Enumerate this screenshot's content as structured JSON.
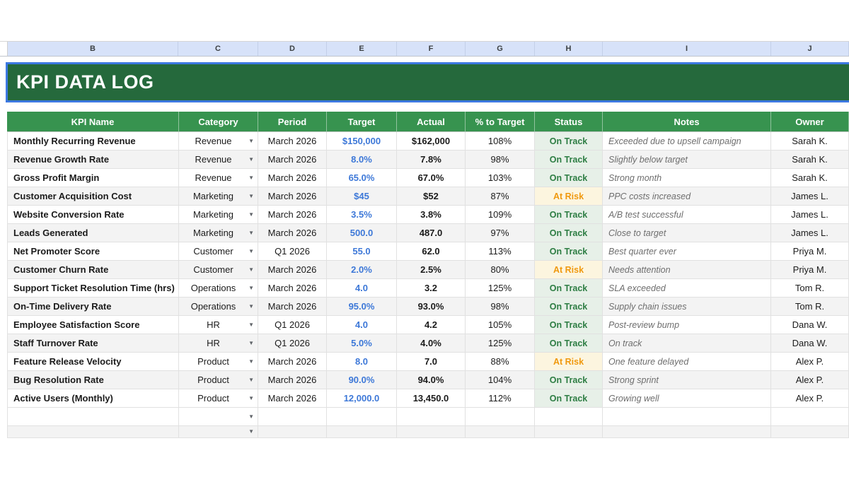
{
  "sheet": {
    "column_letters": [
      "B",
      "C",
      "D",
      "E",
      "F",
      "G",
      "H",
      "I",
      "J"
    ],
    "banner_title": "KPI DATA LOG",
    "colors": {
      "banner_green": "#25693c",
      "header_green": "#37934f",
      "strip_blue": "#d7e2f9",
      "selection_blue": "#3c78e0",
      "target_blue": "#3d78d8",
      "on_track_text": "#2d7d43",
      "on_track_bg": "#e7f0e8",
      "at_risk_text": "#f0990f",
      "at_risk_bg": "#fcf5df"
    },
    "table": {
      "headers": [
        "KPI Name",
        "Category",
        "Period",
        "Target",
        "Actual",
        "% to Target",
        "Status",
        "Notes",
        "Owner"
      ],
      "rows": [
        {
          "kpi": "Monthly Recurring Revenue",
          "category": "Revenue",
          "period": "March 2026",
          "target": "$150,000",
          "actual": "$162,000",
          "pct_to_target": "108%",
          "status": "On Track",
          "notes": "Exceeded due to upsell campaign",
          "owner": "Sarah K."
        },
        {
          "kpi": "Revenue Growth Rate",
          "category": "Revenue",
          "period": "March 2026",
          "target": "8.0%",
          "actual": "7.8%",
          "pct_to_target": "98%",
          "status": "On Track",
          "notes": "Slightly below target",
          "owner": "Sarah K."
        },
        {
          "kpi": "Gross Profit Margin",
          "category": "Revenue",
          "period": "March 2026",
          "target": "65.0%",
          "actual": "67.0%",
          "pct_to_target": "103%",
          "status": "On Track",
          "notes": "Strong month",
          "owner": "Sarah K."
        },
        {
          "kpi": "Customer Acquisition Cost",
          "category": "Marketing",
          "period": "March 2026",
          "target": "$45",
          "actual": "$52",
          "pct_to_target": "87%",
          "status": "At Risk",
          "notes": "PPC costs increased",
          "owner": "James L."
        },
        {
          "kpi": "Website Conversion Rate",
          "category": "Marketing",
          "period": "March 2026",
          "target": "3.5%",
          "actual": "3.8%",
          "pct_to_target": "109%",
          "status": "On Track",
          "notes": "A/B test successful",
          "owner": "James L."
        },
        {
          "kpi": "Leads Generated",
          "category": "Marketing",
          "period": "March 2026",
          "target": "500.0",
          "actual": "487.0",
          "pct_to_target": "97%",
          "status": "On Track",
          "notes": "Close to target",
          "owner": "James L."
        },
        {
          "kpi": "Net Promoter Score",
          "category": "Customer",
          "period": "Q1 2026",
          "target": "55.0",
          "actual": "62.0",
          "pct_to_target": "113%",
          "status": "On Track",
          "notes": "Best quarter ever",
          "owner": "Priya M."
        },
        {
          "kpi": "Customer Churn Rate",
          "category": "Customer",
          "period": "March 2026",
          "target": "2.0%",
          "actual": "2.5%",
          "pct_to_target": "80%",
          "status": "At Risk",
          "notes": "Needs attention",
          "owner": "Priya M."
        },
        {
          "kpi": "Support Ticket Resolution Time (hrs)",
          "category": "Operations",
          "period": "March 2026",
          "target": "4.0",
          "actual": "3.2",
          "pct_to_target": "125%",
          "status": "On Track",
          "notes": "SLA exceeded",
          "owner": "Tom R."
        },
        {
          "kpi": "On-Time Delivery Rate",
          "category": "Operations",
          "period": "March 2026",
          "target": "95.0%",
          "actual": "93.0%",
          "pct_to_target": "98%",
          "status": "On Track",
          "notes": "Supply chain issues",
          "owner": "Tom R."
        },
        {
          "kpi": "Employee Satisfaction Score",
          "category": "HR",
          "period": "Q1 2026",
          "target": "4.0",
          "actual": "4.2",
          "pct_to_target": "105%",
          "status": "On Track",
          "notes": "Post-review bump",
          "owner": "Dana W."
        },
        {
          "kpi": "Staff Turnover Rate",
          "category": "HR",
          "period": "Q1 2026",
          "target": "5.0%",
          "actual": "4.0%",
          "pct_to_target": "125%",
          "status": "On Track",
          "notes": "On track",
          "owner": "Dana W."
        },
        {
          "kpi": "Feature Release Velocity",
          "category": "Product",
          "period": "March 2026",
          "target": "8.0",
          "actual": "7.0",
          "pct_to_target": "88%",
          "status": "At Risk",
          "notes": "One feature delayed",
          "owner": "Alex P."
        },
        {
          "kpi": "Bug Resolution Rate",
          "category": "Product",
          "period": "March 2026",
          "target": "90.0%",
          "actual": "94.0%",
          "pct_to_target": "104%",
          "status": "On Track",
          "notes": "Strong sprint",
          "owner": "Alex P."
        },
        {
          "kpi": "Active Users (Monthly)",
          "category": "Product",
          "period": "March 2026",
          "target": "12,000.0",
          "actual": "13,450.0",
          "pct_to_target": "112%",
          "status": "On Track",
          "notes": "Growing well",
          "owner": "Alex P."
        }
      ],
      "empty_row_count": 2
    }
  }
}
